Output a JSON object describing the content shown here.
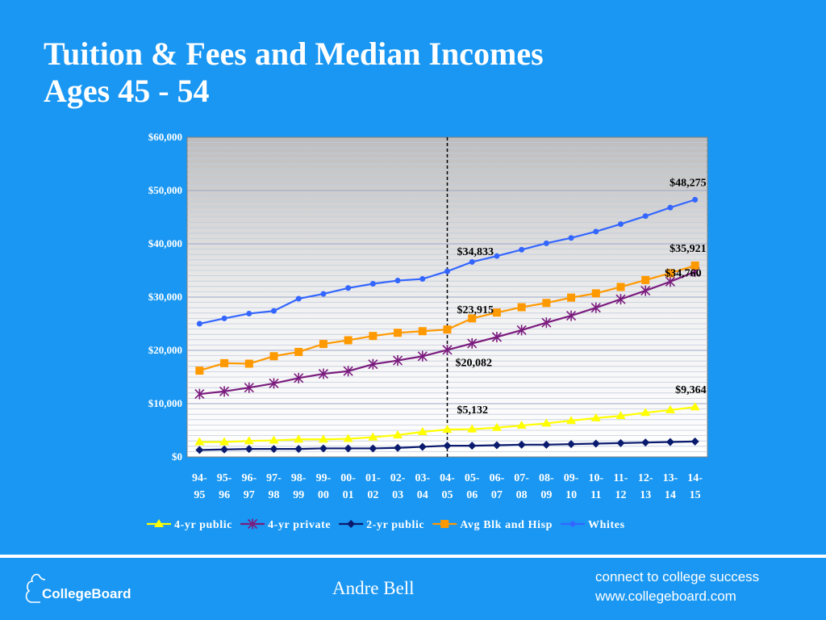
{
  "slide": {
    "title_line1": "Tuition & Fees and Median Incomes",
    "title_line2": "Ages 45 - 54",
    "presenter": "Andre Bell",
    "logo_text": "CollegeBoard",
    "tagline_line1": "connect to college success",
    "tagline_line2": "www.collegeboard.com"
  },
  "chart_data": {
    "type": "line",
    "categories": [
      [
        "94-",
        "95"
      ],
      [
        "95-",
        "96"
      ],
      [
        "96-",
        "97"
      ],
      [
        "97-",
        "98"
      ],
      [
        "98-",
        "99"
      ],
      [
        "99-",
        "00"
      ],
      [
        "00-",
        "01"
      ],
      [
        "01-",
        "02"
      ],
      [
        "02-",
        "03"
      ],
      [
        "03-",
        "04"
      ],
      [
        "04-",
        "05"
      ],
      [
        "05-",
        "06"
      ],
      [
        "06-",
        "07"
      ],
      [
        "07-",
        "08"
      ],
      [
        "08-",
        "09"
      ],
      [
        "09-",
        "10"
      ],
      [
        "10-",
        "11"
      ],
      [
        "11-",
        "12"
      ],
      [
        "12-",
        "13"
      ],
      [
        "13-",
        "14"
      ],
      [
        "14-",
        "15"
      ]
    ],
    "ylim": [
      0,
      60000
    ],
    "yticks": [
      0,
      10000,
      20000,
      30000,
      40000,
      50000,
      60000
    ],
    "ytick_labels": [
      "$0",
      "$10,000",
      "$20,000",
      "$30,000",
      "$40,000",
      "$50,000",
      "$60,000"
    ],
    "divider_after_index": 10,
    "grid": true,
    "legend_position": "bottom",
    "series": [
      {
        "name": "4-yr public",
        "color": "#ffff00",
        "marker": "triangle",
        "values": [
          2800,
          2800,
          3000,
          3100,
          3300,
          3300,
          3400,
          3700,
          4100,
          4700,
          5132,
          5200,
          5500,
          5900,
          6300,
          6800,
          7300,
          7700,
          8300,
          8800,
          9364
        ]
      },
      {
        "name": "4-yr private",
        "color": "#7b1c7e",
        "marker": "asterisk",
        "values": [
          11800,
          12300,
          13000,
          13800,
          14800,
          15600,
          16100,
          17400,
          18100,
          18900,
          20082,
          21300,
          22500,
          23800,
          25200,
          26500,
          28000,
          29600,
          31200,
          32900,
          34760
        ]
      },
      {
        "name": "2-yr public",
        "color": "#0a1a6e",
        "marker": "diamond",
        "values": [
          1300,
          1400,
          1500,
          1500,
          1500,
          1600,
          1600,
          1600,
          1700,
          1900,
          2100,
          2100,
          2200,
          2300,
          2300,
          2400,
          2500,
          2600,
          2700,
          2800,
          2900
        ]
      },
      {
        "name": "Avg Blk and Hisp",
        "color": "#ff9900",
        "marker": "square",
        "values": [
          16200,
          17600,
          17500,
          18900,
          19700,
          21200,
          21900,
          22700,
          23300,
          23600,
          23915,
          26000,
          27100,
          28100,
          28900,
          29900,
          30700,
          31900,
          33200,
          34500,
          35921
        ]
      },
      {
        "name": "Whites",
        "color": "#3366ff",
        "marker": "circle",
        "values": [
          25000,
          26000,
          26900,
          27400,
          29700,
          30600,
          31700,
          32500,
          33100,
          33400,
          34833,
          36600,
          37700,
          38900,
          40100,
          41100,
          42300,
          43700,
          45200,
          46800,
          48275
        ]
      }
    ],
    "annotations": [
      {
        "text": "$48,275",
        "series": 4,
        "index": 20,
        "pos": "above-left"
      },
      {
        "text": "$34,833",
        "series": 4,
        "index": 10,
        "pos": "above-right"
      },
      {
        "text": "$35,921",
        "series": 3,
        "index": 20,
        "pos": "above-left"
      },
      {
        "text": "$34,760",
        "series": 1,
        "index": 20,
        "pos": "below-left"
      },
      {
        "text": "$23,915",
        "series": 3,
        "index": 10,
        "pos": "above-right"
      },
      {
        "text": "$20,082",
        "series": 1,
        "index": 10,
        "pos": "below-right"
      },
      {
        "text": "$9,364",
        "series": 0,
        "index": 20,
        "pos": "above-left"
      },
      {
        "text": "$5,132",
        "series": 0,
        "index": 10,
        "pos": "above-right"
      }
    ]
  }
}
